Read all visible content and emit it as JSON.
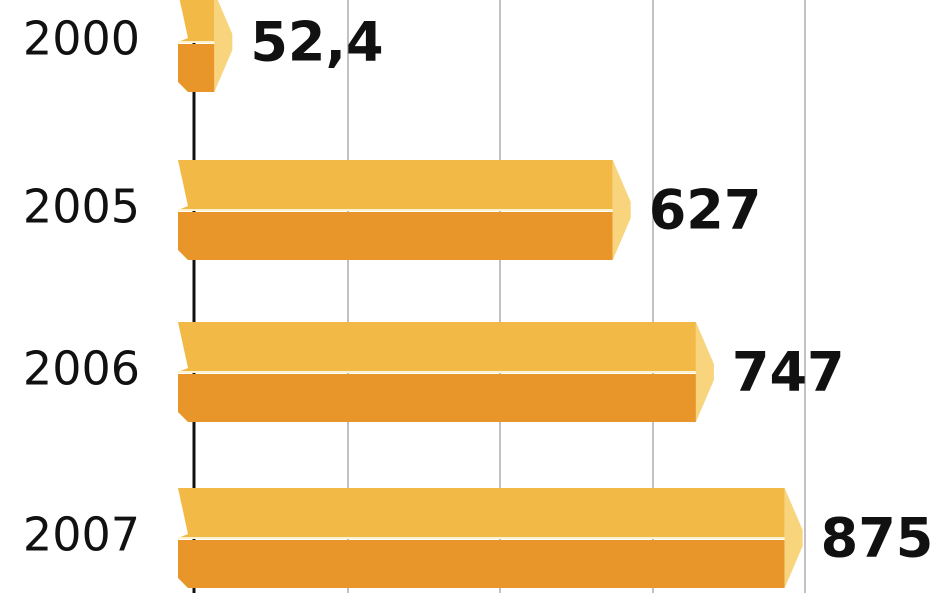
{
  "chart_data": {
    "type": "hbar",
    "categories": [
      "2000",
      "2005",
      "2006",
      "2007"
    ],
    "values": [
      52.4,
      627,
      747,
      875
    ],
    "value_labels": [
      "52,4",
      "627",
      "747",
      "875"
    ],
    "color": "#e8962a",
    "xlim": [
      0,
      900
    ]
  }
}
